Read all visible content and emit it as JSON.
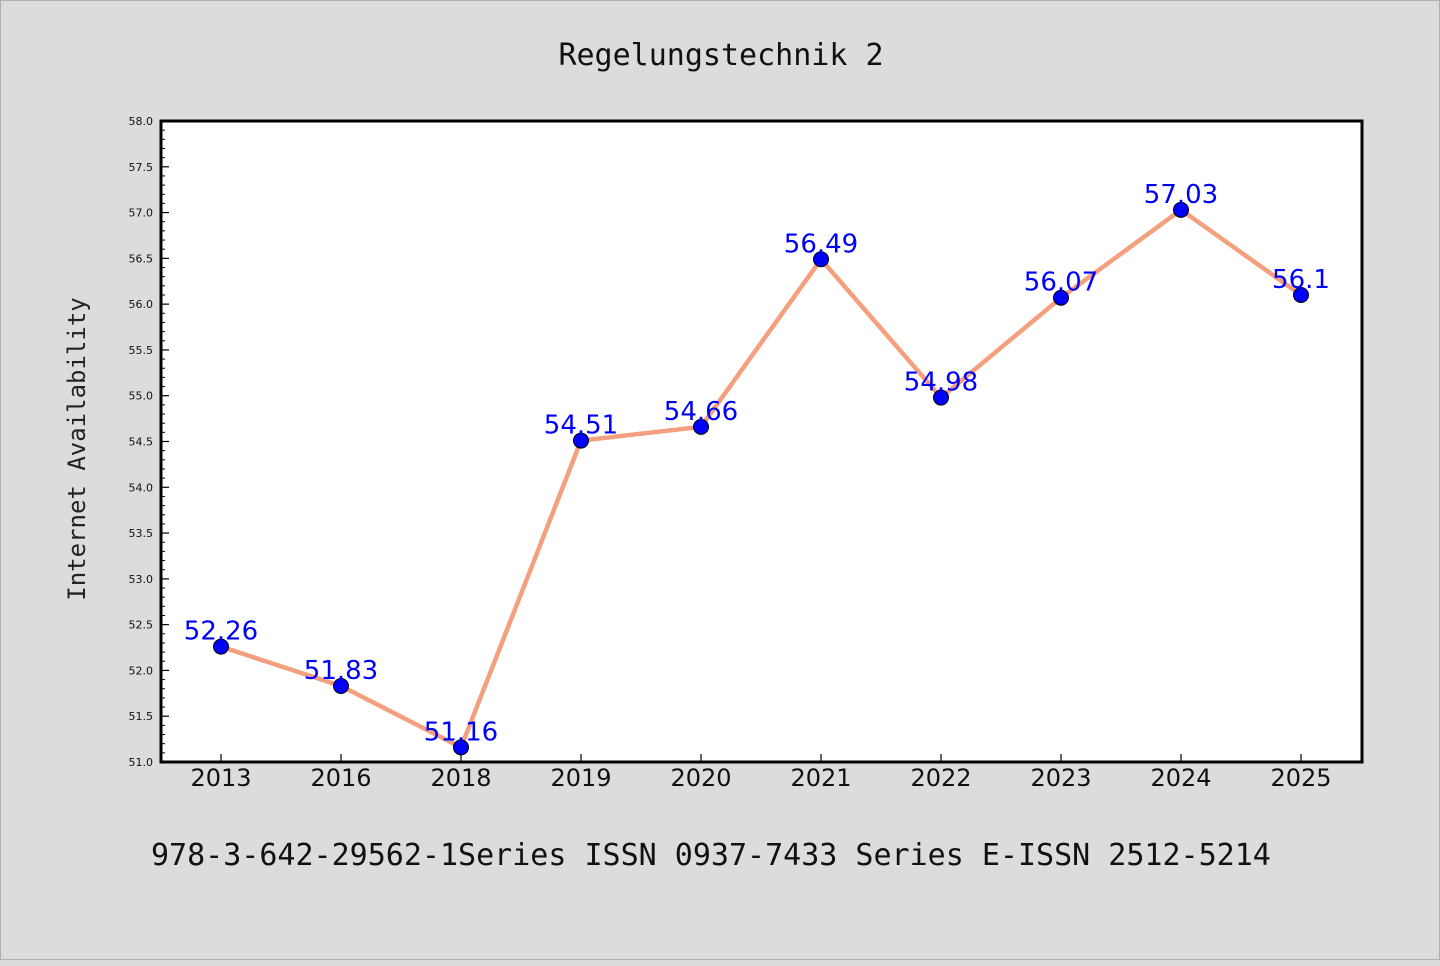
{
  "chart_data": {
    "type": "line",
    "title": "Regelungstechnik 2",
    "ylabel": "Internet Availability",
    "xlabel": "",
    "categories": [
      "2013",
      "2016",
      "2018",
      "2019",
      "2020",
      "2021",
      "2022",
      "2023",
      "2024",
      "2025"
    ],
    "series": [
      {
        "values": [
          52.26,
          51.83,
          51.16,
          54.51,
          54.66,
          56.49,
          54.98,
          56.07,
          57.03,
          56.1
        ],
        "labels": [
          "52.26",
          "51.83",
          "51.16",
          "54.51",
          "54.66",
          "56.49",
          "54.98",
          "56.07",
          "57.03",
          "56.1"
        ],
        "line_color": "#f4a07f",
        "marker_color": "#0000ff"
      }
    ],
    "ylim": [
      51.0,
      58.0
    ],
    "yticks": [
      "51.0",
      "51.5",
      "52.0",
      "52.5",
      "53.0",
      "53.5",
      "54.0",
      "54.5",
      "55.0",
      "55.5",
      "56.0",
      "56.5",
      "57.0",
      "57.5",
      "58.0"
    ],
    "grid": false,
    "legend": "none"
  },
  "footer": "978-3-642-29562-1Series ISSN 0937-7433 Series E-ISSN 2512-5214",
  "colors": {
    "background": "#dcdcdc",
    "plot_background": "#ffffff"
  }
}
